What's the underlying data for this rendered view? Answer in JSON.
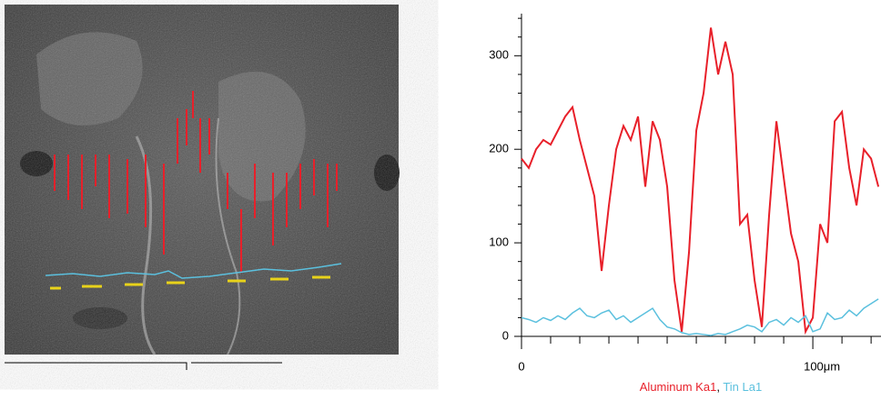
{
  "chart_data": {
    "type": "line",
    "xlim": [
      0,
      123.4
    ],
    "ylim": [
      0,
      345
    ],
    "xticks": [
      0,
      {
        "value": 100,
        "label": "100μm"
      }
    ],
    "xminorticks": [
      10,
      20,
      30,
      40,
      50,
      60,
      70,
      80,
      90,
      110,
      120
    ],
    "yticks": [
      0,
      100,
      200,
      300
    ],
    "yminorticks": [
      20,
      40,
      60,
      80,
      120,
      140,
      160,
      180,
      220,
      240,
      260,
      280,
      320,
      340
    ],
    "legend_separator": ",",
    "x": [
      0,
      2.5,
      5,
      7.5,
      10,
      12.5,
      15,
      17.5,
      20,
      22.5,
      25,
      27.5,
      30,
      32.5,
      35,
      37.5,
      40,
      42.5,
      45,
      47.5,
      50,
      52.5,
      55,
      57.5,
      60,
      62.5,
      65,
      67.5,
      70,
      72.5,
      75,
      77.5,
      80,
      82.5,
      85,
      87.5,
      90,
      92.5,
      95,
      97.5,
      100,
      102.5,
      105,
      107.5,
      110,
      112.5,
      115,
      117.5,
      120,
      122.5
    ],
    "series": [
      {
        "name": "Aluminum Ka1",
        "color": "#e8202a",
        "values": [
          190,
          180,
          200,
          210,
          205,
          220,
          235,
          245,
          210,
          180,
          150,
          70,
          140,
          200,
          225,
          210,
          235,
          160,
          230,
          210,
          160,
          60,
          5,
          90,
          220,
          260,
          330,
          280,
          315,
          280,
          120,
          130,
          60,
          10,
          130,
          230,
          170,
          110,
          80,
          5,
          20,
          120,
          100,
          230,
          240,
          180,
          140,
          200,
          190,
          160
        ]
      },
      {
        "name": "Tin La1",
        "color": "#5bc0de",
        "values": [
          20,
          18,
          15,
          20,
          17,
          22,
          18,
          25,
          30,
          22,
          20,
          25,
          28,
          18,
          22,
          15,
          20,
          25,
          30,
          18,
          10,
          8,
          4,
          2,
          3,
          2,
          1,
          3,
          2,
          5,
          8,
          12,
          10,
          5,
          15,
          18,
          12,
          20,
          15,
          22,
          5,
          8,
          25,
          18,
          20,
          28,
          22,
          30,
          35,
          40
        ]
      }
    ]
  }
}
